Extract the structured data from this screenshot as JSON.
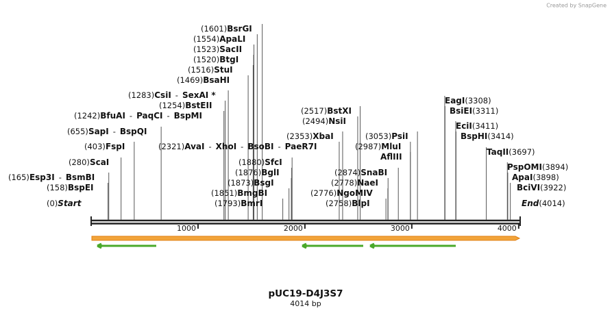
{
  "watermark": "Created by SnapGene",
  "title": "pUC19-D4J3S7",
  "length_label": "4014 bp",
  "separator": "-",
  "ticks": [
    1000,
    2000,
    3000,
    4000
  ],
  "sites": [
    {
      "names": [
        "Start"
      ],
      "position": 0,
      "label": "(0)"
    },
    {
      "names": [
        "BspEI"
      ],
      "position": 158,
      "label": "(158)"
    },
    {
      "names": [
        "Esp3I",
        "BsmBI"
      ],
      "position": 165,
      "label": "(165)"
    },
    {
      "names": [
        "ScaI"
      ],
      "position": 280,
      "label": "(280)"
    },
    {
      "names": [
        "FspI"
      ],
      "position": 403,
      "label": "(403)"
    },
    {
      "names": [
        "SapI",
        "BspQI"
      ],
      "position": 655,
      "label": "(655)"
    },
    {
      "names": [
        "BfuAI",
        "PaqCI",
        "BspMI"
      ],
      "position": 1242,
      "label": "(1242)"
    },
    {
      "names": [
        "BstEII"
      ],
      "position": 1254,
      "label": "(1254)"
    },
    {
      "names": [
        "CsiI",
        "SexAI *"
      ],
      "position": 1283,
      "label": "(1283)"
    },
    {
      "names": [
        "BsaHI"
      ],
      "position": 1469,
      "label": "(1469)"
    },
    {
      "names": [
        "StuI"
      ],
      "position": 1516,
      "label": "(1516)"
    },
    {
      "names": [
        "BtgI"
      ],
      "position": 1520,
      "label": "(1520)"
    },
    {
      "names": [
        "SacII"
      ],
      "position": 1523,
      "label": "(1523)"
    },
    {
      "names": [
        "ApaLI"
      ],
      "position": 1554,
      "label": "(1554)"
    },
    {
      "names": [
        "BsrGI"
      ],
      "position": 1601,
      "label": "(1601)"
    },
    {
      "names": [
        "AvaI",
        "XhoI",
        "BsoBI",
        "PaeR7I"
      ],
      "position": 2321,
      "label": "(2321)"
    },
    {
      "names": [
        "BmrI"
      ],
      "position": 1793,
      "label": "(1793)"
    },
    {
      "names": [
        "BmgBI"
      ],
      "position": 1851,
      "label": "(1851)"
    },
    {
      "names": [
        "BsgI"
      ],
      "position": 1873,
      "label": "(1873)"
    },
    {
      "names": [
        "BglI"
      ],
      "position": 1876,
      "label": "(1876)"
    },
    {
      "names": [
        "SfcI"
      ],
      "position": 1880,
      "label": "(1880)"
    },
    {
      "names": [
        "XbaI"
      ],
      "position": 2353,
      "label": "(2353)"
    },
    {
      "names": [
        "NsiI"
      ],
      "position": 2494,
      "label": "(2494)"
    },
    {
      "names": [
        "BstXI"
      ],
      "position": 2517,
      "label": "(2517)"
    },
    {
      "names": [
        "BlpI"
      ],
      "position": 2758,
      "label": "(2758)"
    },
    {
      "names": [
        "NgoMIV"
      ],
      "position": 2776,
      "label": "(2776)"
    },
    {
      "names": [
        "NaeI"
      ],
      "position": 2778,
      "label": "(2778)"
    },
    {
      "names": [
        "SnaBI"
      ],
      "position": 2874,
      "label": "(2874)"
    },
    {
      "names": [
        "MluI"
      ],
      "position": 2987,
      "label": "(2987)"
    },
    {
      "names": [
        "PsiI"
      ],
      "position": 3053,
      "label": "(3053)"
    },
    {
      "names": [
        "AflIII"
      ],
      "position": 2987,
      "label": null
    },
    {
      "names": [
        "EagI"
      ],
      "position": 3308,
      "label": "(3308)"
    },
    {
      "names": [
        "BsiEI"
      ],
      "position": 3311,
      "label": "(3311)"
    },
    {
      "names": [
        "EciI"
      ],
      "position": 3411,
      "label": "(3411)"
    },
    {
      "names": [
        "BspHI"
      ],
      "position": 3414,
      "label": "(3414)"
    },
    {
      "names": [
        "TaqII"
      ],
      "position": 3697,
      "label": "(3697)"
    },
    {
      "names": [
        "PspOMI"
      ],
      "position": 3894,
      "label": "(3894)"
    },
    {
      "names": [
        "ApaI"
      ],
      "position": 3898,
      "label": "(3898)"
    },
    {
      "names": [
        "BciVI"
      ],
      "position": 3922,
      "label": "(3922)"
    },
    {
      "names": [
        "End"
      ],
      "position": 4014,
      "label": "(4014)"
    }
  ]
}
